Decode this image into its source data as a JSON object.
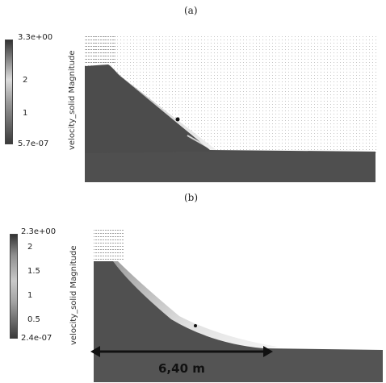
{
  "panels": [
    {
      "label": "(a)",
      "colorbar": {
        "title": "velocity_solid Magnitude",
        "max": "3.3e+00",
        "min": "5.7e-07",
        "ticks": [
          "2",
          "1"
        ]
      }
    },
    {
      "label": "(b)",
      "colorbar": {
        "title": "velocity_solid Magnitude",
        "max": "2.3e+00",
        "min": "2.4e-07",
        "ticks": [
          "2",
          "1.5",
          "1",
          "0.5"
        ]
      },
      "annotation": "6,40 m"
    }
  ]
}
